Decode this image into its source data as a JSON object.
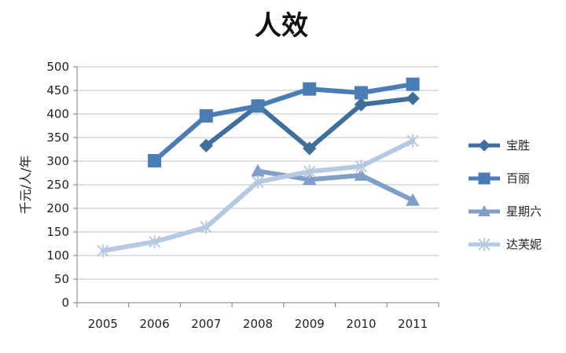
{
  "chart_data": {
    "type": "line",
    "title": "人效",
    "xlabel": "",
    "ylabel": "千元/人/年",
    "categories": [
      "2005",
      "2006",
      "2007",
      "2008",
      "2009",
      "2010",
      "2011"
    ],
    "ylim": [
      0,
      500
    ],
    "yticks": [
      0,
      50,
      100,
      150,
      200,
      250,
      300,
      350,
      400,
      450,
      500
    ],
    "grid": true,
    "legend_position": "right",
    "series": [
      {
        "name": "宝胜",
        "color": "#3f6f9b",
        "marker": "diamond",
        "values": [
          null,
          null,
          333,
          418,
          327,
          420,
          433
        ]
      },
      {
        "name": "百丽",
        "color": "#4a7db5",
        "marker": "square",
        "values": [
          null,
          301,
          396,
          417,
          453,
          445,
          463
        ]
      },
      {
        "name": "星期六",
        "color": "#7f9fc8",
        "marker": "triangle",
        "values": [
          null,
          null,
          null,
          279,
          261,
          270,
          217
        ]
      },
      {
        "name": "达芙妮",
        "color": "#b6c9e3",
        "marker": "cross",
        "values": [
          110,
          129,
          160,
          256,
          278,
          289,
          343
        ]
      }
    ]
  }
}
